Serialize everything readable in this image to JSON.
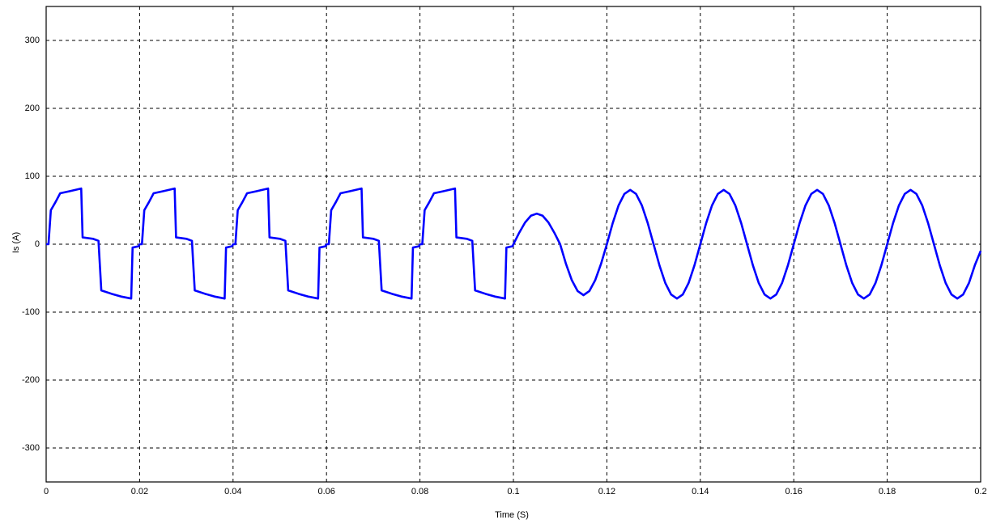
{
  "chart_data": {
    "type": "line",
    "xlabel": "Time (S)",
    "ylabel": "Is (A)",
    "x": [
      0,
      0.0005,
      0.001,
      0.002,
      0.003,
      0.005,
      0.0075,
      0.0078,
      0.01,
      0.0112,
      0.0118,
      0.014,
      0.016,
      0.0182,
      0.0185,
      0.0198,
      0.02,
      0.0205,
      0.021,
      0.022,
      0.023,
      0.025,
      0.0275,
      0.0278,
      0.03,
      0.0312,
      0.0318,
      0.034,
      0.036,
      0.0382,
      0.0385,
      0.0398,
      0.04,
      0.0405,
      0.041,
      0.042,
      0.043,
      0.045,
      0.0475,
      0.0478,
      0.05,
      0.0512,
      0.0518,
      0.054,
      0.056,
      0.0582,
      0.0585,
      0.0598,
      0.06,
      0.0605,
      0.061,
      0.062,
      0.063,
      0.065,
      0.0675,
      0.0678,
      0.07,
      0.0712,
      0.0718,
      0.074,
      0.076,
      0.0782,
      0.0785,
      0.0798,
      0.08,
      0.0805,
      0.081,
      0.082,
      0.083,
      0.085,
      0.0875,
      0.0878,
      0.09,
      0.0912,
      0.0918,
      0.094,
      0.096,
      0.0982,
      0.0985,
      0.0998,
      0.1,
      0.10125,
      0.1025,
      0.10375,
      0.105,
      0.10625,
      0.1075,
      0.10875,
      0.11,
      0.11125,
      0.1125,
      0.11375,
      0.115,
      0.11625,
      0.1175,
      0.11875,
      0.12,
      0.12125,
      0.1225,
      0.12375,
      0.125,
      0.12625,
      0.1275,
      0.12875,
      0.13,
      0.13125,
      0.1325,
      0.13375,
      0.135,
      0.13625,
      0.1375,
      0.13875,
      0.14,
      0.14125,
      0.1425,
      0.14375,
      0.145,
      0.14625,
      0.1475,
      0.14875,
      0.15,
      0.15125,
      0.1525,
      0.15375,
      0.155,
      0.15625,
      0.1575,
      0.15875,
      0.16,
      0.16125,
      0.1625,
      0.16375,
      0.165,
      0.16625,
      0.1675,
      0.16875,
      0.17,
      0.17125,
      0.1725,
      0.17375,
      0.175,
      0.17625,
      0.1775,
      0.17875,
      0.18,
      0.18125,
      0.1825,
      0.18375,
      0.185,
      0.18625,
      0.1875,
      0.18875,
      0.19,
      0.19125,
      0.1925,
      0.19375,
      0.195,
      0.19625,
      0.1975,
      0.19875,
      0.2
    ],
    "values": [
      0,
      0,
      50,
      62,
      75,
      78,
      82,
      10,
      8,
      5,
      -68,
      -73,
      -77,
      -80,
      -5,
      -3,
      0,
      0,
      50,
      62,
      75,
      78,
      82,
      10,
      8,
      5,
      -68,
      -73,
      -77,
      -80,
      -5,
      -3,
      0,
      0,
      50,
      62,
      75,
      78,
      82,
      10,
      8,
      5,
      -68,
      -73,
      -77,
      -80,
      -5,
      -3,
      0,
      0,
      50,
      62,
      75,
      78,
      82,
      10,
      8,
      5,
      -68,
      -73,
      -77,
      -80,
      -5,
      -3,
      0,
      0,
      50,
      62,
      75,
      78,
      82,
      10,
      8,
      5,
      -68,
      -73,
      -77,
      -80,
      -5,
      -3,
      0,
      17,
      32,
      42,
      45,
      42,
      32,
      17,
      0,
      -29,
      -53,
      -69,
      -75,
      -69,
      -53,
      -29,
      0,
      31,
      57,
      74,
      80,
      74,
      57,
      31,
      0,
      -31,
      -57,
      -74,
      -80,
      -74,
      -57,
      -31,
      0,
      31,
      57,
      74,
      80,
      74,
      57,
      31,
      0,
      -31,
      -57,
      -74,
      -80,
      -74,
      -57,
      -31,
      0,
      31,
      57,
      74,
      80,
      74,
      57,
      31,
      0,
      -31,
      -57,
      -74,
      -80,
      -74,
      -57,
      -31,
      0,
      31,
      57,
      74,
      80,
      74,
      57,
      31,
      0,
      -31,
      -57,
      -74,
      -80,
      -74,
      -57,
      -31,
      -10
    ],
    "color": "#0000ff",
    "xlim": [
      0,
      0.2
    ],
    "xticks": [
      0,
      0.02,
      0.04,
      0.06,
      0.08,
      0.1,
      0.12,
      0.14,
      0.16,
      0.18,
      0.2
    ],
    "ylim": [
      -350,
      350
    ],
    "yticks": [
      -300,
      -200,
      -100,
      0,
      100,
      200,
      300
    ],
    "grid": true
  }
}
